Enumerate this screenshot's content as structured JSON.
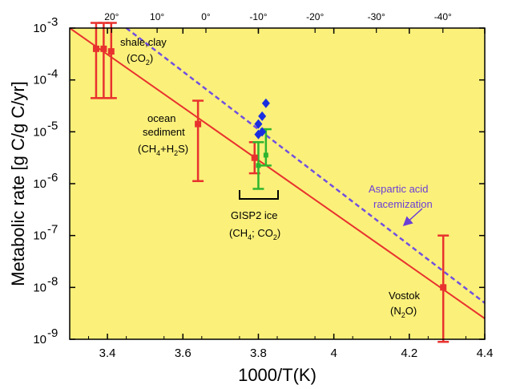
{
  "chart_data": {
    "type": "scatter",
    "xlabel": "1000/T(K)",
    "ylabel": "Metabolic rate [g C/g C/yr]",
    "xlim": [
      3.3,
      4.4
    ],
    "ylim_log10": [
      -9,
      -3
    ],
    "scale_y": "log",
    "background_color": "#fbf07a",
    "grid": false,
    "x_ticks": [
      3.4,
      3.6,
      3.8,
      4,
      4.2,
      4.4
    ],
    "x_tick_labels": [
      "3.4",
      "3.6",
      "3.8",
      "4",
      "4.2",
      "4.4"
    ],
    "y_ticks_log10": [
      -9,
      -8,
      -7,
      -6,
      -5,
      -4,
      -3
    ],
    "y_tick_mantissa": "10",
    "y_tick_exponents": [
      "-9",
      "-8",
      "-7",
      "-6",
      "-5",
      "-4",
      "-3"
    ],
    "top_axis": {
      "label_values_celsius": [
        20,
        10,
        0,
        -10,
        -20,
        -30,
        -40
      ],
      "labels": [
        "20°",
        "10°",
        "0°",
        "-10°",
        "-20°",
        "-30°",
        "-40°"
      ]
    },
    "lines": [
      {
        "style": "solid",
        "color": "#e8322e",
        "points": [
          [
            3.3,
            -3.0
          ],
          [
            4.4,
            -8.6
          ]
        ]
      },
      {
        "style": "dashed",
        "color": "#7050e0",
        "points": [
          [
            3.45,
            -3.0
          ],
          [
            4.4,
            -8.3
          ]
        ]
      }
    ],
    "red_points": [
      {
        "x": 3.37,
        "y": -3.4,
        "err_low": -4.35,
        "err_high": -2.9
      },
      {
        "x": 3.39,
        "y": -3.4,
        "err_low": -4.35,
        "err_high": -2.9
      },
      {
        "x": 3.41,
        "y": -3.45,
        "err_low": -4.35,
        "err_high": -2.9
      },
      {
        "x": 3.64,
        "y": -4.85,
        "err_low": -5.95,
        "err_high": -4.4
      },
      {
        "x": 3.79,
        "y": -5.5,
        "err_low": -5.8,
        "err_high": -5.2
      },
      {
        "x": 4.29,
        "y": -8.0,
        "err_low": -9.05,
        "err_high": -7.0
      }
    ],
    "green_points": [
      {
        "x": 3.8,
        "y": -5.65,
        "err_low": -6.1,
        "err_high": -5.2
      },
      {
        "x": 3.82,
        "y": -5.45,
        "err_low": -5.65,
        "err_high": -4.95
      }
    ],
    "blue_points": [
      {
        "x": 3.8,
        "y": -5.05
      },
      {
        "x": 3.81,
        "y": -4.7
      },
      {
        "x": 3.82,
        "y": -4.45
      },
      {
        "x": 3.8,
        "y": -4.85
      },
      {
        "x": 3.81,
        "y": -5.0
      }
    ],
    "annotations": {
      "shale_line1": "shale,clay",
      "shale_line2_pre": "(CO",
      "shale_line2_sub": "2",
      "shale_line2_post": ")",
      "ocean_line1": "ocean",
      "ocean_line2": "sediment",
      "ocean_line3_pre": "(CH",
      "ocean_line3_sub1": "4",
      "ocean_line3_mid": "+H",
      "ocean_line3_sub2": "2",
      "ocean_line3_post": "S)",
      "gisp_line1": "GISP2 ice",
      "gisp_line2_pre": "(CH",
      "gisp_line2_sub1": "4",
      "gisp_line2_mid": "; CO",
      "gisp_line2_sub2": "2",
      "gisp_line2_post": ")",
      "vostok_line1": "Vostok",
      "vostok_line2_pre": "(N",
      "vostok_line2_sub": "2",
      "vostok_line2_post": "O)",
      "aspartic_line1": "Aspartic acid",
      "aspartic_line2": "racemization"
    }
  }
}
